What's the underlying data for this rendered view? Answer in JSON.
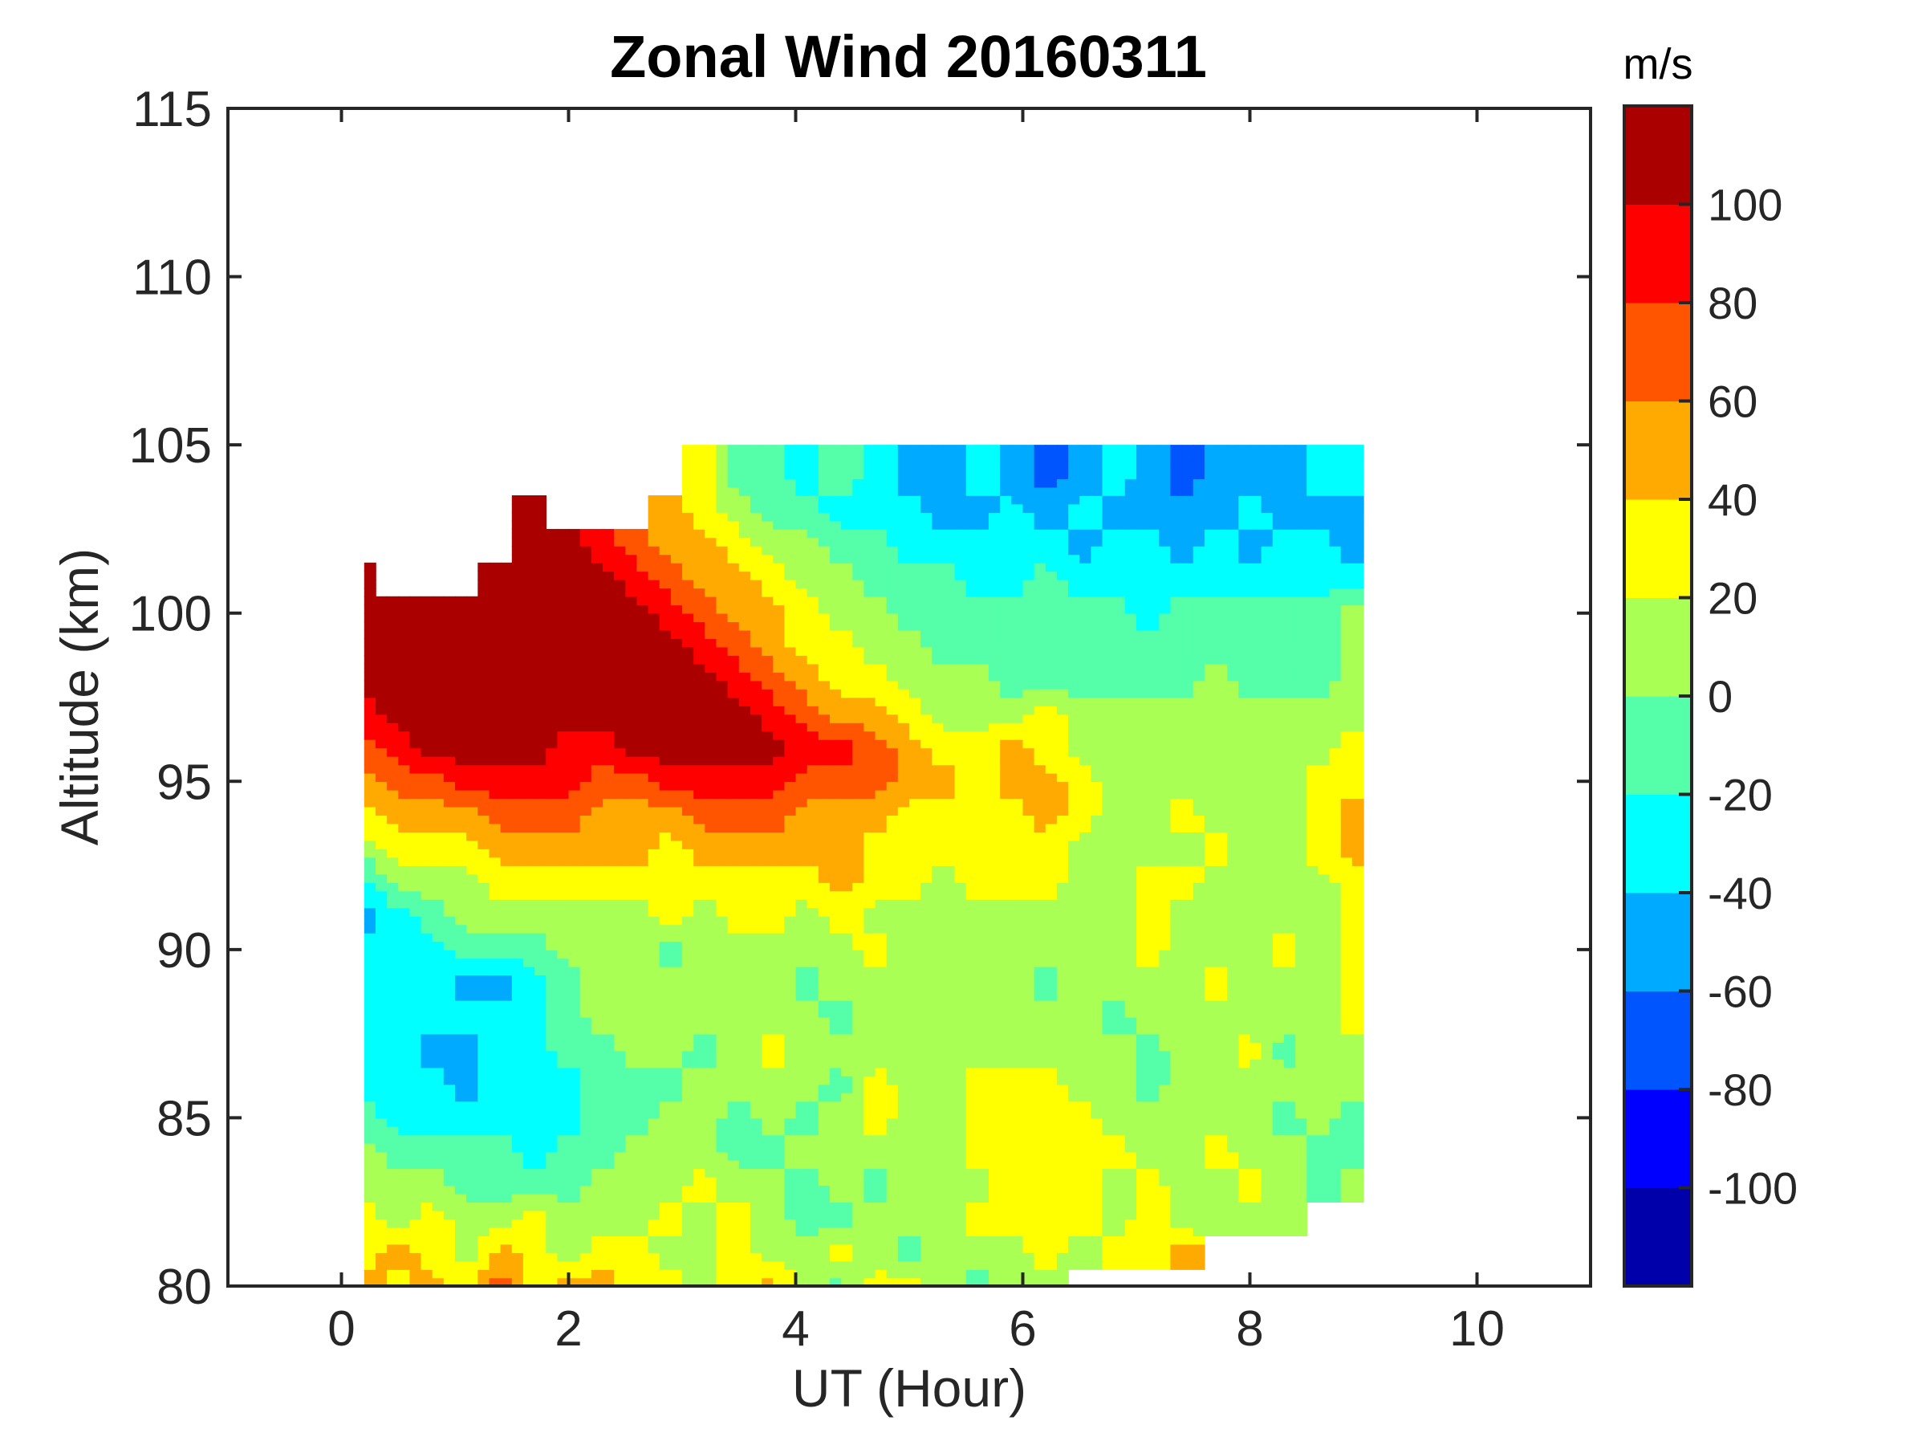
{
  "chart_data": {
    "type": "heatmap",
    "subtype": "filled-contour",
    "title": "Zonal Wind 20160311",
    "xlabel": "UT (Hour)",
    "ylabel": "Altitude (km)",
    "xlim": [
      -1,
      11
    ],
    "ylim": [
      80,
      115
    ],
    "xticks": [
      0,
      2,
      4,
      6,
      8,
      10
    ],
    "yticks": [
      80,
      85,
      90,
      95,
      100,
      105,
      110,
      115
    ],
    "colorbar": {
      "label": "m/s",
      "range": [
        -120,
        120
      ],
      "ticks": [
        -100,
        -80,
        -60,
        -40,
        -20,
        0,
        20,
        40,
        60,
        80,
        100
      ],
      "levels": [
        -120,
        -100,
        -80,
        -60,
        -40,
        -20,
        0,
        20,
        40,
        60,
        80,
        100,
        120
      ],
      "colors": [
        "#0000aa",
        "#0000ff",
        "#0055ff",
        "#00aaff",
        "#00ffff",
        "#55ffaa",
        "#aaff55",
        "#ffff00",
        "#ffaa00",
        "#ff5500",
        "#ff0000",
        "#aa0000"
      ]
    },
    "grid": false,
    "x": [
      0.2,
      0.5,
      0.8,
      1.1,
      1.4,
      1.7,
      2.0,
      2.3,
      2.6,
      2.9,
      3.2,
      3.5,
      3.8,
      4.1,
      4.4,
      4.7,
      5.0,
      5.3,
      5.6,
      5.9,
      6.2,
      6.5,
      6.8,
      7.1,
      7.4,
      7.7,
      8.0,
      8.3,
      8.6,
      8.9
    ],
    "y": [
      104,
      103,
      102,
      101,
      100,
      99,
      98,
      97,
      96,
      95,
      94,
      93,
      92,
      91,
      90,
      89,
      88,
      87,
      86,
      85,
      84,
      83,
      82,
      81,
      80
    ],
    "z_units": "m/s",
    "z": [
      [
        null,
        null,
        null,
        null,
        null,
        null,
        null,
        null,
        null,
        null,
        30,
        -10,
        -10,
        -30,
        -10,
        -30,
        -50,
        -50,
        -30,
        -50,
        -70,
        -50,
        -30,
        -50,
        -70,
        -50,
        -50,
        -50,
        -30,
        -30
      ],
      [
        null,
        null,
        null,
        null,
        null,
        110,
        null,
        null,
        null,
        50,
        30,
        10,
        -10,
        -10,
        -30,
        -30,
        -30,
        -50,
        -50,
        -30,
        -50,
        -30,
        -50,
        -50,
        -50,
        -50,
        -30,
        -50,
        -50,
        -50
      ],
      [
        null,
        null,
        null,
        null,
        null,
        110,
        110,
        90,
        70,
        50,
        50,
        30,
        10,
        10,
        -10,
        -10,
        -30,
        -30,
        -30,
        -30,
        -30,
        -50,
        -30,
        -30,
        -50,
        -30,
        -50,
        -30,
        -30,
        -50
      ],
      [
        110,
        null,
        null,
        null,
        110,
        110,
        110,
        110,
        90,
        70,
        50,
        50,
        30,
        10,
        10,
        -10,
        -10,
        -10,
        -30,
        -30,
        -10,
        -30,
        -30,
        -30,
        -30,
        -30,
        -30,
        -30,
        -30,
        -30
      ],
      [
        110,
        110,
        110,
        110,
        110,
        110,
        110,
        110,
        110,
        90,
        70,
        50,
        50,
        30,
        10,
        10,
        -10,
        -10,
        -10,
        -10,
        -10,
        -10,
        -10,
        -30,
        -10,
        -10,
        -10,
        -10,
        -10,
        10
      ],
      [
        110,
        110,
        110,
        110,
        110,
        110,
        110,
        110,
        110,
        110,
        90,
        70,
        50,
        30,
        30,
        10,
        10,
        -10,
        -10,
        -10,
        -10,
        -10,
        -10,
        -10,
        -10,
        -10,
        -10,
        -10,
        -10,
        10
      ],
      [
        110,
        110,
        110,
        110,
        110,
        110,
        110,
        110,
        110,
        110,
        110,
        90,
        70,
        50,
        30,
        30,
        10,
        10,
        10,
        -10,
        -10,
        -10,
        -10,
        -10,
        -10,
        10,
        -10,
        -10,
        -10,
        10
      ],
      [
        90,
        110,
        110,
        110,
        110,
        110,
        110,
        110,
        110,
        110,
        110,
        110,
        90,
        70,
        50,
        50,
        30,
        10,
        10,
        10,
        30,
        10,
        10,
        10,
        10,
        10,
        10,
        10,
        10,
        10
      ],
      [
        70,
        90,
        110,
        110,
        110,
        110,
        90,
        90,
        110,
        110,
        110,
        110,
        110,
        90,
        90,
        70,
        50,
        30,
        30,
        50,
        30,
        10,
        10,
        10,
        10,
        10,
        10,
        10,
        10,
        30
      ],
      [
        50,
        70,
        70,
        90,
        90,
        90,
        90,
        70,
        70,
        90,
        90,
        90,
        90,
        70,
        70,
        70,
        50,
        50,
        30,
        50,
        50,
        30,
        10,
        10,
        10,
        10,
        10,
        10,
        30,
        30
      ],
      [
        30,
        50,
        50,
        50,
        70,
        70,
        70,
        50,
        50,
        50,
        70,
        70,
        70,
        50,
        50,
        50,
        30,
        30,
        30,
        30,
        50,
        30,
        10,
        10,
        30,
        10,
        10,
        10,
        30,
        50
      ],
      [
        10,
        30,
        30,
        30,
        50,
        50,
        50,
        50,
        50,
        30,
        50,
        50,
        50,
        50,
        50,
        30,
        30,
        30,
        30,
        30,
        30,
        10,
        10,
        10,
        10,
        30,
        10,
        10,
        30,
        50
      ],
      [
        -30,
        10,
        10,
        10,
        30,
        30,
        30,
        30,
        30,
        30,
        30,
        30,
        30,
        30,
        50,
        30,
        30,
        10,
        30,
        30,
        30,
        10,
        10,
        30,
        30,
        10,
        10,
        10,
        10,
        30
      ],
      [
        -50,
        -30,
        -10,
        10,
        10,
        10,
        10,
        10,
        10,
        30,
        10,
        30,
        30,
        10,
        30,
        10,
        10,
        10,
        10,
        10,
        10,
        10,
        10,
        30,
        10,
        10,
        10,
        10,
        10,
        30
      ],
      [
        -30,
        -30,
        -30,
        -10,
        -10,
        -10,
        10,
        10,
        10,
        -10,
        10,
        10,
        10,
        10,
        10,
        30,
        10,
        10,
        10,
        10,
        10,
        10,
        10,
        30,
        10,
        10,
        10,
        30,
        10,
        30
      ],
      [
        -30,
        -30,
        -30,
        -50,
        -50,
        -30,
        -10,
        10,
        10,
        10,
        10,
        10,
        10,
        -10,
        10,
        10,
        10,
        10,
        10,
        10,
        -10,
        10,
        10,
        10,
        10,
        30,
        10,
        10,
        10,
        30
      ],
      [
        -30,
        -30,
        -30,
        -30,
        -30,
        -30,
        -10,
        10,
        10,
        10,
        10,
        10,
        10,
        10,
        -10,
        10,
        10,
        10,
        10,
        10,
        10,
        10,
        -10,
        10,
        10,
        10,
        10,
        10,
        10,
        30
      ],
      [
        -30,
        -30,
        -50,
        -50,
        -30,
        -30,
        -10,
        -10,
        10,
        10,
        -10,
        10,
        30,
        10,
        10,
        10,
        10,
        10,
        10,
        10,
        10,
        10,
        10,
        -10,
        10,
        10,
        30,
        -10,
        10,
        10
      ],
      [
        -30,
        -30,
        -30,
        -50,
        -30,
        -30,
        -30,
        -10,
        -10,
        -10,
        10,
        10,
        10,
        10,
        -10,
        30,
        10,
        10,
        30,
        30,
        30,
        10,
        10,
        -10,
        10,
        10,
        10,
        10,
        10,
        10
      ],
      [
        -10,
        -30,
        -30,
        -30,
        -30,
        -30,
        -30,
        -10,
        -10,
        10,
        10,
        -10,
        10,
        -10,
        10,
        30,
        10,
        10,
        30,
        30,
        30,
        30,
        10,
        10,
        10,
        10,
        10,
        -10,
        10,
        -10
      ],
      [
        10,
        -10,
        -10,
        -10,
        -10,
        -30,
        -10,
        -10,
        10,
        10,
        10,
        -10,
        -10,
        10,
        10,
        10,
        10,
        10,
        30,
        30,
        30,
        30,
        30,
        10,
        10,
        30,
        10,
        10,
        -10,
        -10
      ],
      [
        10,
        10,
        10,
        -10,
        -10,
        -10,
        -10,
        10,
        10,
        10,
        30,
        10,
        10,
        -10,
        10,
        -10,
        10,
        10,
        10,
        30,
        30,
        30,
        10,
        30,
        10,
        10,
        30,
        10,
        -10,
        10
      ],
      [
        30,
        10,
        30,
        10,
        10,
        30,
        10,
        10,
        10,
        30,
        10,
        30,
        10,
        -10,
        -10,
        10,
        10,
        10,
        30,
        30,
        30,
        30,
        10,
        30,
        10,
        10,
        10,
        10,
        null,
        null
      ],
      [
        30,
        50,
        30,
        10,
        50,
        30,
        10,
        30,
        30,
        10,
        10,
        30,
        10,
        10,
        30,
        10,
        -10,
        10,
        10,
        10,
        30,
        10,
        30,
        30,
        50,
        null,
        null,
        null,
        null,
        null
      ],
      [
        50,
        30,
        50,
        30,
        70,
        30,
        50,
        50,
        30,
        30,
        10,
        30,
        50,
        10,
        -10,
        30,
        30,
        10,
        -10,
        10,
        10,
        null,
        null,
        null,
        null,
        null,
        null,
        null,
        null,
        null
      ]
    ]
  }
}
